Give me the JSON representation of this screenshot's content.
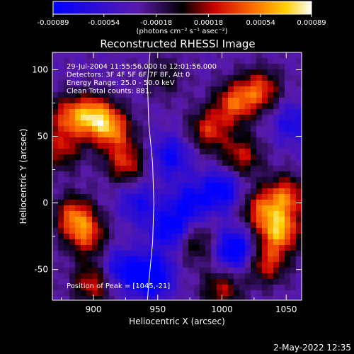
{
  "chart_data": {
    "type": "heatmap",
    "title": "Reconstructed RHESSI Image",
    "xlabel": "Heliocentric X (arcsec)",
    "ylabel": "Heliocentric Y (arcsec)",
    "xlim": [
      868,
      1062
    ],
    "ylim": [
      -73,
      113
    ],
    "x_ticks": [
      900,
      950,
      1000,
      1050
    ],
    "y_ticks": [
      -50,
      0,
      50,
      100
    ],
    "colorbar": {
      "ticks": [
        "-0.00089",
        "-0.00054",
        "-0.00018",
        "0.00018",
        "0.00054",
        "0.00089"
      ],
      "range": [
        -0.00089,
        0.00089
      ],
      "units_text": "(photons cm⁻² s⁻¹ asec⁻²)"
    },
    "annotations": [
      "29-Jul-2004 11:55:56.000 to 12:01:56.000",
      "Detectors: 3F 4F 5F 6F 7F 8F, Att 0",
      "Energy Range: 25.0 - 50.0 keV",
      "Clean      Total counts: 881."
    ],
    "peak_label": "Position of Peak = [1045,-21]",
    "limb_line": [
      [
        944,
        113
      ],
      [
        942,
        90
      ],
      [
        943,
        60
      ],
      [
        946,
        30
      ],
      [
        947,
        0
      ],
      [
        946,
        -30
      ],
      [
        943,
        -60
      ],
      [
        942,
        -73
      ]
    ],
    "hot_spots": [
      {
        "x": 900,
        "y": 65,
        "value": 0.00085
      },
      {
        "x": 915,
        "y": 55,
        "value": 0.0007
      },
      {
        "x": 925,
        "y": 30,
        "value": 0.0006
      },
      {
        "x": 880,
        "y": 65,
        "value": 0.0006
      },
      {
        "x": 885,
        "y": -10,
        "value": 0.0007
      },
      {
        "x": 895,
        "y": -25,
        "value": 0.0006
      },
      {
        "x": 900,
        "y": -60,
        "value": 0.0006
      },
      {
        "x": 875,
        "y": 40,
        "value": 0.0005
      },
      {
        "x": 1010,
        "y": 75,
        "value": 0.0007
      },
      {
        "x": 1030,
        "y": 85,
        "value": 0.00065
      },
      {
        "x": 990,
        "y": 55,
        "value": 0.0006
      },
      {
        "x": 1015,
        "y": 35,
        "value": 0.00055
      },
      {
        "x": 1045,
        "y": -21,
        "value": 0.00089
      },
      {
        "x": 1050,
        "y": 5,
        "value": 0.0007
      },
      {
        "x": 1030,
        "y": -5,
        "value": 0.0006
      },
      {
        "x": 1035,
        "y": -45,
        "value": 0.0006
      },
      {
        "x": 1000,
        "y": -65,
        "value": 0.0005
      },
      {
        "x": 980,
        "y": -30,
        "value": 0.0004
      },
      {
        "x": 955,
        "y": 95,
        "value": 0.0003
      }
    ],
    "cold_spots": [
      {
        "x": 945,
        "y": -55,
        "value": -0.0008
      },
      {
        "x": 960,
        "y": -20,
        "value": -0.0006
      },
      {
        "x": 975,
        "y": 0,
        "value": -0.0005
      },
      {
        "x": 1000,
        "y": 10,
        "value": -0.0006
      },
      {
        "x": 1010,
        "y": -35,
        "value": -0.0007
      },
      {
        "x": 960,
        "y": 35,
        "value": -0.0005
      },
      {
        "x": 920,
        "y": -50,
        "value": -0.0005
      },
      {
        "x": 1055,
        "y": 60,
        "value": -0.0004
      },
      {
        "x": 935,
        "y": 0,
        "value": -0.0004
      }
    ]
  },
  "footer": {
    "timestamp": "2-May-2022 12:35"
  },
  "colors": {
    "background": "#000000",
    "axis": "#ffffff"
  }
}
